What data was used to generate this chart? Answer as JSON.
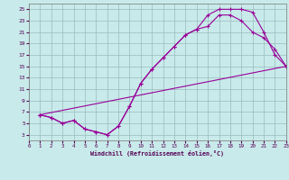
{
  "xlabel": "Windchill (Refroidissement éolien,°C)",
  "bg_color": "#c8eaea",
  "grid_color": "#9bbcbc",
  "line_color": "#990099",
  "xlim": [
    0,
    23
  ],
  "ylim": [
    2,
    26
  ],
  "xticks": [
    0,
    1,
    2,
    3,
    4,
    5,
    6,
    7,
    8,
    9,
    10,
    11,
    12,
    13,
    14,
    15,
    16,
    17,
    18,
    19,
    20,
    21,
    22,
    23
  ],
  "yticks": [
    3,
    5,
    7,
    9,
    11,
    13,
    15,
    17,
    19,
    21,
    23,
    25
  ],
  "curve1_x": [
    1,
    2,
    3,
    4,
    5,
    6,
    7,
    8,
    9,
    10,
    11,
    12,
    13,
    14,
    15,
    16,
    17,
    18,
    19,
    20,
    21,
    22,
    23
  ],
  "curve1_y": [
    6.5,
    6.0,
    5.0,
    5.5,
    4.0,
    3.5,
    3.0,
    4.5,
    8.0,
    12.0,
    14.5,
    16.5,
    18.5,
    20.5,
    21.5,
    24.0,
    25.0,
    25.0,
    25.0,
    24.5,
    21.0,
    17.0,
    15.0
  ],
  "curve2_x": [
    1,
    2,
    3,
    4,
    5,
    6,
    7,
    8,
    9,
    10,
    11,
    12,
    13,
    14,
    15,
    16,
    17,
    18,
    19,
    20,
    21,
    22,
    23
  ],
  "curve2_y": [
    6.5,
    6.0,
    5.0,
    5.5,
    4.0,
    3.5,
    3.0,
    4.5,
    8.0,
    12.0,
    14.5,
    16.5,
    18.5,
    20.5,
    21.5,
    22.0,
    24.0,
    24.0,
    23.0,
    21.0,
    20.0,
    18.0,
    15.0
  ],
  "curve3_x": [
    1,
    23
  ],
  "curve3_y": [
    6.5,
    15.0
  ]
}
